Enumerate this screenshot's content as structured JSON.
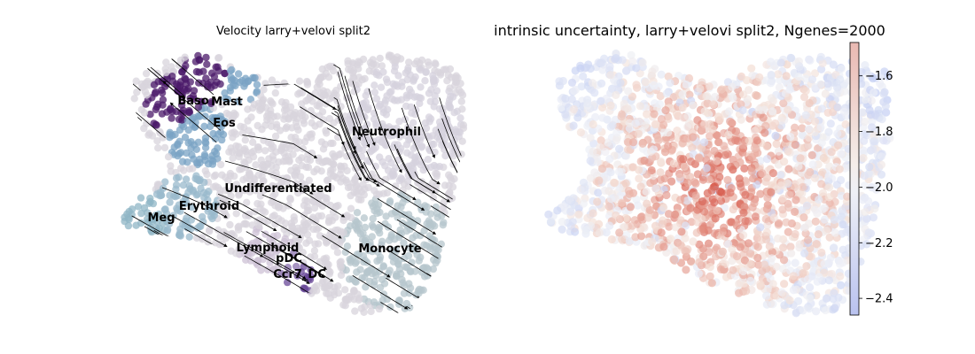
{
  "chart_data": [
    {
      "type": "scatter",
      "title": "Velocity larry+velovi split2",
      "overlay": "streamlines",
      "axes_visible": false,
      "cluster_labels": [
        "Baso",
        "Mast",
        "Eos",
        "Neutrophil",
        "Undifferentiated",
        "Erythroid",
        "Meg",
        "Lymphoid",
        "pDC",
        "Ccr7_DC",
        "Monocyte"
      ],
      "colors": {
        "Baso": "#4b1a6a",
        "Mast": "#4b1a6a",
        "Eos": "#7aa3c4",
        "Neutrophil": "#d6d2de",
        "Undifferentiated": "#d8d4dc",
        "Erythroid": "#9ab9cc",
        "Meg": "#8fb5c5",
        "Lymphoid": "#cdc2d6",
        "pDC": "#8a70ae",
        "Ccr7_DC": "#6a4a98",
        "Monocyte": "#b5c6cc"
      }
    },
    {
      "type": "scatter",
      "title": "intrinsic uncertainty, larry+velovi split2, Ngenes=2000",
      "axes_visible": false,
      "colormap": "coolwarm",
      "colorbar": {
        "range": [
          -2.46,
          -1.48
        ],
        "ticks": [
          -2.4,
          -2.2,
          -2.0,
          -1.8,
          -1.6
        ],
        "tick_labels": [
          "−2.4",
          "−2.2",
          "−2.0",
          "−1.8",
          "−1.6"
        ]
      }
    }
  ]
}
